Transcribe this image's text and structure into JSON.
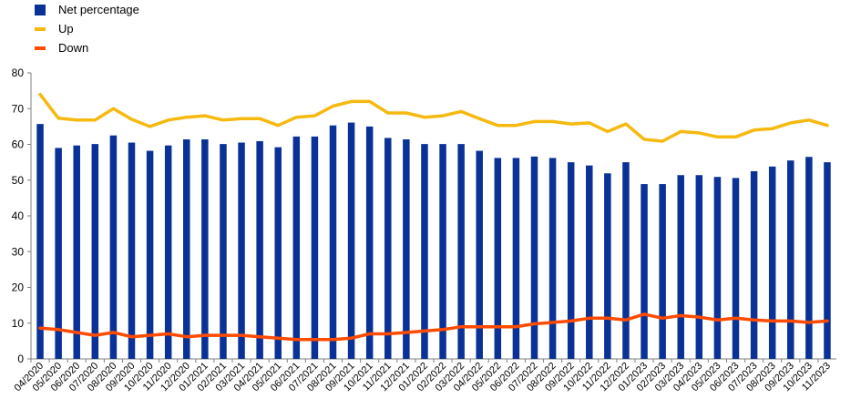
{
  "legend": {
    "net_label": "Net percentage",
    "up_label": "Up",
    "down_label": "Down"
  },
  "colors": {
    "net": "#0a3296",
    "up": "#f5b90f",
    "down": "#ff4b00",
    "axis": "#7f7f7f",
    "grid": "#d9d9d9"
  },
  "chart_data": {
    "type": "bar",
    "series": [
      {
        "name": "Net percentage",
        "kind": "bar",
        "values": [
          65.7,
          59,
          59.7,
          60.1,
          62.5,
          60.5,
          58.2,
          59.7,
          61.4,
          61.4,
          60.1,
          60.5,
          60.9,
          59.2,
          62.2,
          62.2,
          65.3,
          66.1,
          65,
          61.8,
          61.4,
          60.1,
          60.1,
          60.1,
          58.2,
          56.2,
          56.2,
          56.6,
          56.2,
          55,
          54.1,
          51.9,
          55,
          48.9,
          48.9,
          51.4,
          51.4,
          50.9,
          50.6,
          52.5,
          53.8,
          55.5,
          56.5,
          55
        ]
      },
      {
        "name": "Up",
        "kind": "line",
        "values": [
          74,
          67.3,
          66.8,
          66.8,
          70,
          67,
          65,
          66.8,
          67.6,
          68,
          66.8,
          67.2,
          67.2,
          65.3,
          67.6,
          68,
          70.7,
          72,
          72,
          68.8,
          68.8,
          67.6,
          68,
          69.2,
          67.2,
          65.3,
          65.3,
          66.4,
          66.4,
          65.7,
          66,
          63.6,
          65.7,
          61.4,
          60.9,
          63.6,
          63.2,
          62.1,
          62.1,
          64,
          64.4,
          66,
          66.8,
          65.3
        ]
      },
      {
        "name": "Down",
        "kind": "line",
        "values": [
          8.6,
          8.2,
          7.4,
          6.6,
          7.4,
          6.2,
          6.6,
          7.0,
          6.2,
          6.6,
          6.6,
          6.6,
          6.2,
          5.8,
          5.4,
          5.4,
          5.4,
          5.8,
          7.0,
          7.0,
          7.4,
          7.8,
          8.2,
          9.0,
          9.0,
          9.0,
          9.0,
          9.8,
          10.2,
          10.6,
          11.4,
          11.4,
          10.9,
          12.5,
          11.4,
          12.1,
          11.7,
          10.9,
          11.4,
          10.9,
          10.6,
          10.6,
          10.2,
          10.6
        ]
      }
    ],
    "categories": [
      "04/2020",
      "05/2020",
      "06/2020",
      "07/2020",
      "08/2020",
      "09/2020",
      "10/2020",
      "11/2020",
      "12/2020",
      "01/2021",
      "02/2021",
      "03/2021",
      "04/2021",
      "05/2021",
      "06/2021",
      "07/2021",
      "08/2021",
      "09/2021",
      "10/2021",
      "11/2021",
      "12/2021",
      "01/2022",
      "02/2022",
      "03/2022",
      "04/2022",
      "05/2022",
      "06/2022",
      "07/2022",
      "08/2022",
      "09/2022",
      "10/2022",
      "11/2022",
      "12/2022",
      "01/2023",
      "02/2023",
      "03/2023",
      "04/2023",
      "05/2023",
      "06/2023",
      "07/2023",
      "08/2023",
      "09/2023",
      "10/2023",
      "11/2023"
    ],
    "ylim": [
      0,
      80
    ],
    "yticks": [
      "0",
      "10",
      "20",
      "30",
      "40",
      "50",
      "60",
      "70",
      "80"
    ],
    "grid": false,
    "legend_position": "top-left"
  }
}
